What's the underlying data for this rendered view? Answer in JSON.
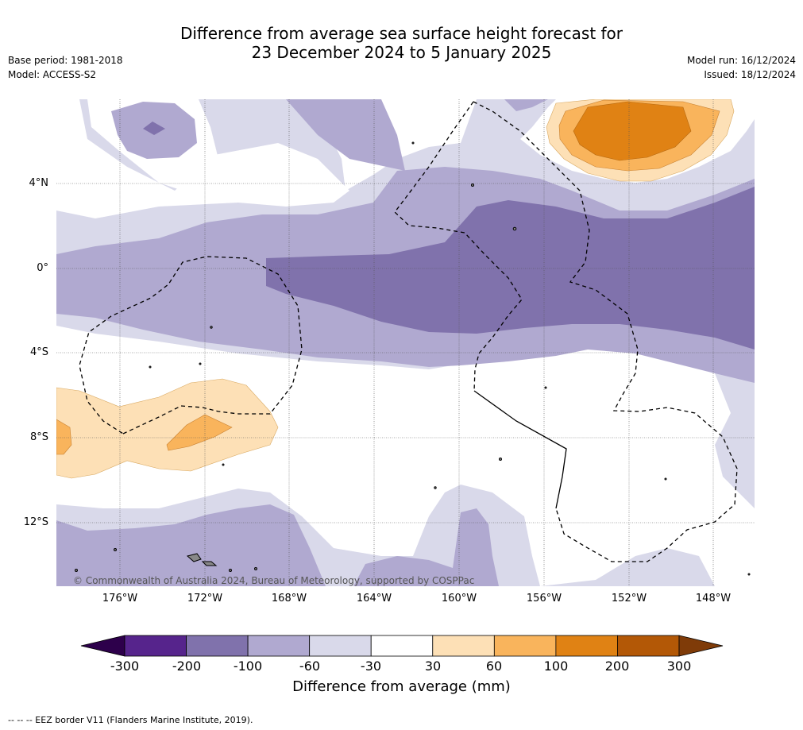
{
  "header": {
    "title_line1": "Difference from average sea surface height forecast for",
    "title_line2": "23 December 2024 to 5 January 2025",
    "base_period": "Base period: 1981-2018",
    "model": "Model: ACCESS-S2",
    "model_run": "Model run: 16/12/2024",
    "issued": "Issued: 18/12/2024"
  },
  "map": {
    "lat_labels": [
      "4°N",
      "0°",
      "4°S",
      "8°S",
      "12°S"
    ],
    "lon_labels": [
      "176°W",
      "172°W",
      "168°W",
      "164°W",
      "160°W",
      "156°W",
      "152°W",
      "148°W"
    ],
    "copyright": "© Commonwealth of Australia 2024, Bureau of Meteorology, supported by COSPPac"
  },
  "colorbar": {
    "ticks": [
      "-300",
      "-200",
      "-100",
      "-60",
      "-30",
      "30",
      "60",
      "100",
      "200",
      "300"
    ],
    "colors": [
      "#56248c",
      "#8072ac",
      "#b0a9d0",
      "#d9d9ea",
      "#ffffff",
      "#fde0b6",
      "#f9b45c",
      "#e08214",
      "#b35806"
    ],
    "extend_low_color": "#2d004b",
    "extend_high_color": "#7f3b08",
    "title": "Difference from average (mm)"
  },
  "footer": {
    "eez_note": "--  --  -- EEZ border V11 (Flanders Marine Institute, 2019)."
  }
}
